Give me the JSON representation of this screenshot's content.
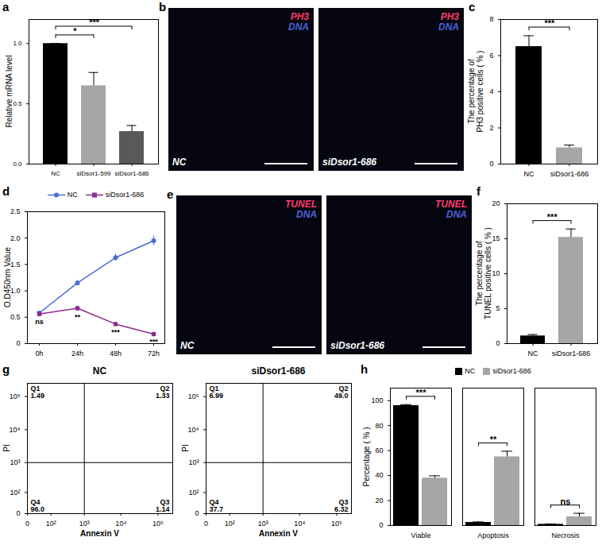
{
  "chart_data": [
    {
      "panel": "a",
      "type": "bar",
      "categories": [
        "NC",
        "siDsor1-599",
        "siDsor1-686"
      ],
      "values": [
        1.0,
        0.65,
        0.27
      ],
      "errors": [
        0,
        0.11,
        0.05
      ],
      "colors": [
        "#000000",
        "#a6a6a6",
        "#595959"
      ],
      "y_label": "Relative mRNA level",
      "ylim": [
        0,
        1.2
      ],
      "yticks": [
        {
          "value": 0,
          "label": "0.0"
        },
        0.5,
        {
          "value": 1,
          "label": "1.0"
        }
      ],
      "significance": [
        {
          "from": "NC",
          "to": "siDsor1-599",
          "label": "*"
        },
        {
          "from": "NC",
          "to": "siDsor1-686",
          "label": "***"
        }
      ]
    },
    {
      "panel": "b",
      "type": "image",
      "images": [
        {
          "label": "NC",
          "stains": [
            {
              "name": "PH3",
              "color": "#ff3b6b"
            },
            {
              "name": "DNA",
              "color": "#4a63d6"
            }
          ]
        },
        {
          "label": "siDsor1-686",
          "stains": [
            {
              "name": "PH3",
              "color": "#ff3b6b"
            },
            {
              "name": "DNA",
              "color": "#4a63d6"
            }
          ]
        }
      ]
    },
    {
      "panel": "c",
      "type": "bar",
      "categories": [
        "NC",
        "siDsor1-686"
      ],
      "values": [
        6.5,
        0.9
      ],
      "errors": [
        0.6,
        0.15
      ],
      "colors": [
        "#000000",
        "#a6a6a6"
      ],
      "y_label": "The percentage of\nPH3 positive cells ( % )",
      "ylim": [
        0,
        8
      ],
      "yticks": [
        0,
        2,
        4,
        6,
        8
      ],
      "significance": [
        {
          "from": "NC",
          "to": "siDsor1-686",
          "label": "***"
        }
      ]
    },
    {
      "panel": "d",
      "type": "line",
      "x": [
        "0h",
        "24h",
        "48h",
        "72h"
      ],
      "series": [
        {
          "name": "NC",
          "color": "#4a6cd4",
          "marker": "circle",
          "values": [
            0.58,
            1.15,
            1.63,
            1.95
          ],
          "errors": [
            0.03,
            0.05,
            0.07,
            0.09
          ]
        },
        {
          "name": "siDsor1-686",
          "color": "#8e2c8e",
          "marker": "square",
          "values": [
            0.56,
            0.67,
            0.37,
            0.18
          ],
          "errors": [
            0.02,
            0.04,
            0.03,
            0.02
          ]
        }
      ],
      "annotations": [
        {
          "x": "0h",
          "label": "ns"
        },
        {
          "x": "24h",
          "label": "**"
        },
        {
          "x": "48h",
          "label": "***"
        },
        {
          "x": "72h",
          "label": "***"
        }
      ],
      "y_label": "O.D450nm Value",
      "ylim": [
        0,
        2.5
      ],
      "yticks": [
        0,
        0.5,
        {
          "value": 1,
          "label": "1.0"
        },
        1.5,
        {
          "value": 2,
          "label": "2.0"
        },
        2.5
      ],
      "legend": "top"
    },
    {
      "panel": "e",
      "type": "image",
      "images": [
        {
          "label": "NC",
          "stains": [
            {
              "name": "TUNEL",
              "color": "#ff3b6b"
            },
            {
              "name": "DNA",
              "color": "#4a63d6"
            }
          ]
        },
        {
          "label": "siDsor1-686",
          "stains": [
            {
              "name": "TUNEL",
              "color": "#ff3b6b"
            },
            {
              "name": "DNA",
              "color": "#4a63d6"
            }
          ]
        }
      ]
    },
    {
      "panel": "f",
      "type": "bar",
      "categories": [
        "NC",
        "siDsor1-686"
      ],
      "values": [
        1.1,
        15.2
      ],
      "errors": [
        0.2,
        1.2
      ],
      "colors": [
        "#000000",
        "#a6a6a6"
      ],
      "y_label": "The percentage of\nTUNEL positive cells ( % )",
      "ylim": [
        0,
        20
      ],
      "yticks": [
        0,
        5,
        10,
        15,
        20
      ],
      "significance": [
        {
          "from": "NC",
          "to": "siDsor1-686",
          "label": "***"
        }
      ]
    },
    {
      "panel": "g",
      "type": "flow_cytometry",
      "x_label": "Annexin V",
      "y_label": "PI",
      "log": true,
      "xlim": [
        0,
        250000
      ],
      "ylim": [
        0,
        250000
      ],
      "xticks": [
        0,
        {
          "value": 100,
          "label": "10²"
        },
        {
          "value": 1000,
          "label": "10³"
        },
        {
          "value": 10000,
          "label": "10⁴"
        },
        {
          "value": 100000,
          "label": "10⁵"
        }
      ],
      "yticks": [
        0,
        {
          "value": 100,
          "label": "10²"
        },
        {
          "value": 1000,
          "label": "10³"
        },
        {
          "value": 10000,
          "label": "10⁴"
        },
        {
          "value": 100000,
          "label": "10⁵"
        }
      ],
      "gates": {
        "x": 1000,
        "y": 1000
      },
      "plots": [
        {
          "title": "NC",
          "quadrants": [
            "Q1",
            "Q2",
            "Q3",
            "Q4"
          ],
          "values": [
            1.49,
            1.33,
            1.14,
            96.0
          ],
          "value_labels": [
            "1.49",
            "1.33",
            "1.14",
            "96.0"
          ]
        },
        {
          "title": "siDsor1-686",
          "quadrants": [
            "Q1",
            "Q2",
            "Q3",
            "Q4"
          ],
          "values": [
            6.99,
            49.0,
            6.32,
            37.7
          ],
          "value_labels": [
            "6.99",
            "49.0",
            "6.32",
            "37.7"
          ]
        }
      ]
    },
    {
      "panel": "h",
      "type": "bar",
      "categories": [
        "Viable",
        "Apoptosis",
        "Necrosis"
      ],
      "series": [
        {
          "name": "NC",
          "color": "#000000",
          "values": [
            96,
            2.5,
            1.0
          ],
          "errors": [
            0.8,
            0.4,
            0.3
          ]
        },
        {
          "name": "siDsor1-686",
          "color": "#a6a6a6",
          "values": [
            38,
            55,
            7
          ],
          "errors": [
            1.8,
            4.5,
            2.8
          ]
        }
      ],
      "significance": [
        {
          "category": "Viable",
          "label": "***"
        },
        {
          "category": "Apoptosis",
          "label": "**"
        },
        {
          "category": "Necrosis",
          "label": "ns"
        }
      ],
      "y_label": "Percentage ( % )",
      "ylim": [
        0,
        110
      ],
      "yticks": [
        0,
        20,
        40,
        60,
        80,
        100
      ],
      "legend": "top"
    }
  ]
}
